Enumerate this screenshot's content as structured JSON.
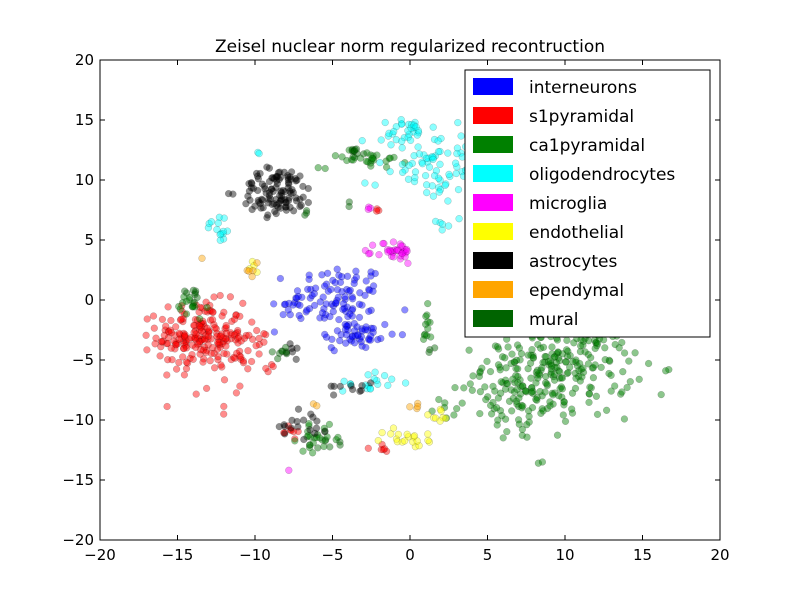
{
  "chart_data": {
    "type": "scatter",
    "title": "Zeisel nuclear norm regularized recontruction",
    "xlabel": "",
    "ylabel": "",
    "xlim": [
      -20,
      20
    ],
    "ylim": [
      -20,
      20
    ],
    "xticks": [
      -20,
      -15,
      -10,
      -5,
      0,
      5,
      10,
      15,
      20
    ],
    "yticks": [
      -20,
      -15,
      -10,
      -5,
      0,
      5,
      10,
      15,
      20
    ],
    "xtick_labels": [
      "−20",
      "−15",
      "−10",
      "−5",
      "0",
      "5",
      "10",
      "15",
      "20"
    ],
    "ytick_labels": [
      "−20",
      "−15",
      "−10",
      "−5",
      "0",
      "5",
      "10",
      "15",
      "20"
    ],
    "legend_position": "top-right",
    "grid": false,
    "point_alpha": 0.45,
    "series": [
      {
        "name": "interneurons",
        "color": "#0000ff",
        "clusters": [
          {
            "cx": -4.5,
            "cy": 0.2,
            "sx": 1.5,
            "sy": 1.4,
            "n": 90
          },
          {
            "cx": -3.5,
            "cy": -3.0,
            "sx": 1.3,
            "sy": 0.7,
            "n": 45
          },
          {
            "cx": -7.5,
            "cy": -0.5,
            "sx": 0.6,
            "sy": 0.6,
            "n": 15
          }
        ]
      },
      {
        "name": "s1pyramidal",
        "color": "#ff0000",
        "clusters": [
          {
            "cx": -13.5,
            "cy": -3.0,
            "sx": 1.4,
            "sy": 1.4,
            "n": 200
          },
          {
            "cx": -10.5,
            "cy": -4.5,
            "sx": 0.9,
            "sy": 1.2,
            "n": 30
          },
          {
            "cx": -7.8,
            "cy": -11.0,
            "sx": 0.4,
            "sy": 0.2,
            "n": 8
          },
          {
            "cx": -2.0,
            "cy": -12.3,
            "sx": 0.4,
            "sy": 0.2,
            "n": 6
          },
          {
            "cx": -2.2,
            "cy": 7.5,
            "sx": 0.3,
            "sy": 0.1,
            "n": 3
          },
          {
            "cx": -12.0,
            "cy": -8.5,
            "sx": 1.5,
            "sy": 1.0,
            "n": 6
          }
        ]
      },
      {
        "name": "ca1pyramidal",
        "color": "#008000",
        "clusters": [
          {
            "cx": 9.5,
            "cy": -5.5,
            "sx": 2.4,
            "sy": 2.1,
            "n": 280
          },
          {
            "cx": 6.5,
            "cy": -9.0,
            "sx": 1.5,
            "sy": 1.5,
            "n": 45
          },
          {
            "cx": -3.0,
            "cy": 11.8,
            "sx": 1.4,
            "sy": 0.4,
            "n": 30
          },
          {
            "cx": -5.8,
            "cy": -11.5,
            "sx": 0.7,
            "sy": 0.5,
            "n": 25
          },
          {
            "cx": 1.0,
            "cy": -2.5,
            "sx": 0.15,
            "sy": 0.9,
            "n": 12
          },
          {
            "cx": -14.2,
            "cy": -0.6,
            "sx": 0.5,
            "sy": 0.6,
            "n": 15
          },
          {
            "cx": 2.5,
            "cy": -9.0,
            "sx": 0.5,
            "sy": 0.6,
            "n": 8
          }
        ]
      },
      {
        "name": "oligodendrocytes",
        "color": "#00ffff",
        "clusters": [
          {
            "cx": 1.5,
            "cy": 11.5,
            "sx": 1.8,
            "sy": 1.8,
            "n": 85
          },
          {
            "cx": 0.0,
            "cy": 14.0,
            "sx": 0.7,
            "sy": 0.6,
            "n": 25
          },
          {
            "cx": -12.3,
            "cy": 6.0,
            "sx": 0.4,
            "sy": 0.6,
            "n": 14
          },
          {
            "cx": -2.5,
            "cy": -6.8,
            "sx": 1.0,
            "sy": 0.5,
            "n": 18
          },
          {
            "cx": -9.8,
            "cy": 12.3,
            "sx": 0.1,
            "sy": 0.1,
            "n": 2
          },
          {
            "cx": 1.8,
            "cy": 6.2,
            "sx": 0.3,
            "sy": 0.2,
            "n": 5
          }
        ]
      },
      {
        "name": "microglia",
        "color": "#ff00ff",
        "clusters": [
          {
            "cx": -1.0,
            "cy": 4.0,
            "sx": 0.6,
            "sy": 0.5,
            "n": 35
          },
          {
            "cx": -7.8,
            "cy": -14.1,
            "sx": 0.1,
            "sy": 0.1,
            "n": 1
          },
          {
            "cx": -2.5,
            "cy": 7.6,
            "sx": 0.2,
            "sy": 0.1,
            "n": 3
          }
        ]
      },
      {
        "name": "endothelial",
        "color": "#ffff00",
        "clusters": [
          {
            "cx": 0.0,
            "cy": -11.5,
            "sx": 0.9,
            "sy": 0.4,
            "n": 20
          },
          {
            "cx": 1.8,
            "cy": -9.8,
            "sx": 0.5,
            "sy": 0.5,
            "n": 8
          },
          {
            "cx": -10.2,
            "cy": 2.8,
            "sx": 0.3,
            "sy": 0.3,
            "n": 4
          }
        ]
      },
      {
        "name": "astrocytes",
        "color": "#000000",
        "clusters": [
          {
            "cx": -8.5,
            "cy": 9.0,
            "sx": 1.2,
            "sy": 1.0,
            "n": 110
          },
          {
            "cx": -6.8,
            "cy": -10.2,
            "sx": 0.8,
            "sy": 0.7,
            "n": 18
          },
          {
            "cx": -3.5,
            "cy": -7.2,
            "sx": 0.7,
            "sy": 0.3,
            "n": 10
          },
          {
            "cx": -7.5,
            "cy": -4.3,
            "sx": 0.4,
            "sy": 0.3,
            "n": 6
          }
        ]
      },
      {
        "name": "ependymal",
        "color": "#ffa500",
        "clusters": [
          {
            "cx": -13.5,
            "cy": 3.5,
            "sx": 0.1,
            "sy": 0.1,
            "n": 1
          },
          {
            "cx": -10.3,
            "cy": 2.5,
            "sx": 0.3,
            "sy": 0.3,
            "n": 5
          },
          {
            "cx": 0.2,
            "cy": -9.0,
            "sx": 0.3,
            "sy": 0.4,
            "n": 4
          },
          {
            "cx": -6.2,
            "cy": -8.5,
            "sx": 0.2,
            "sy": 0.2,
            "n": 2
          }
        ]
      },
      {
        "name": "mural",
        "color": "#006400",
        "clusters": [
          {
            "cx": -14.0,
            "cy": 0.5,
            "sx": 0.3,
            "sy": 0.3,
            "n": 8
          },
          {
            "cx": -8.2,
            "cy": -4.3,
            "sx": 0.4,
            "sy": 0.3,
            "n": 8
          },
          {
            "cx": -3.6,
            "cy": 12.4,
            "sx": 0.5,
            "sy": 0.2,
            "n": 8
          },
          {
            "cx": -6.5,
            "cy": 7.3,
            "sx": 0.2,
            "sy": 0.2,
            "n": 3
          },
          {
            "cx": 1.2,
            "cy": -4.3,
            "sx": 0.2,
            "sy": 0.2,
            "n": 3
          },
          {
            "cx": -5.5,
            "cy": -12.0,
            "sx": 0.6,
            "sy": 0.3,
            "n": 6
          },
          {
            "cx": -3.9,
            "cy": 8.0,
            "sx": 0.1,
            "sy": 0.1,
            "n": 2
          }
        ]
      }
    ]
  }
}
